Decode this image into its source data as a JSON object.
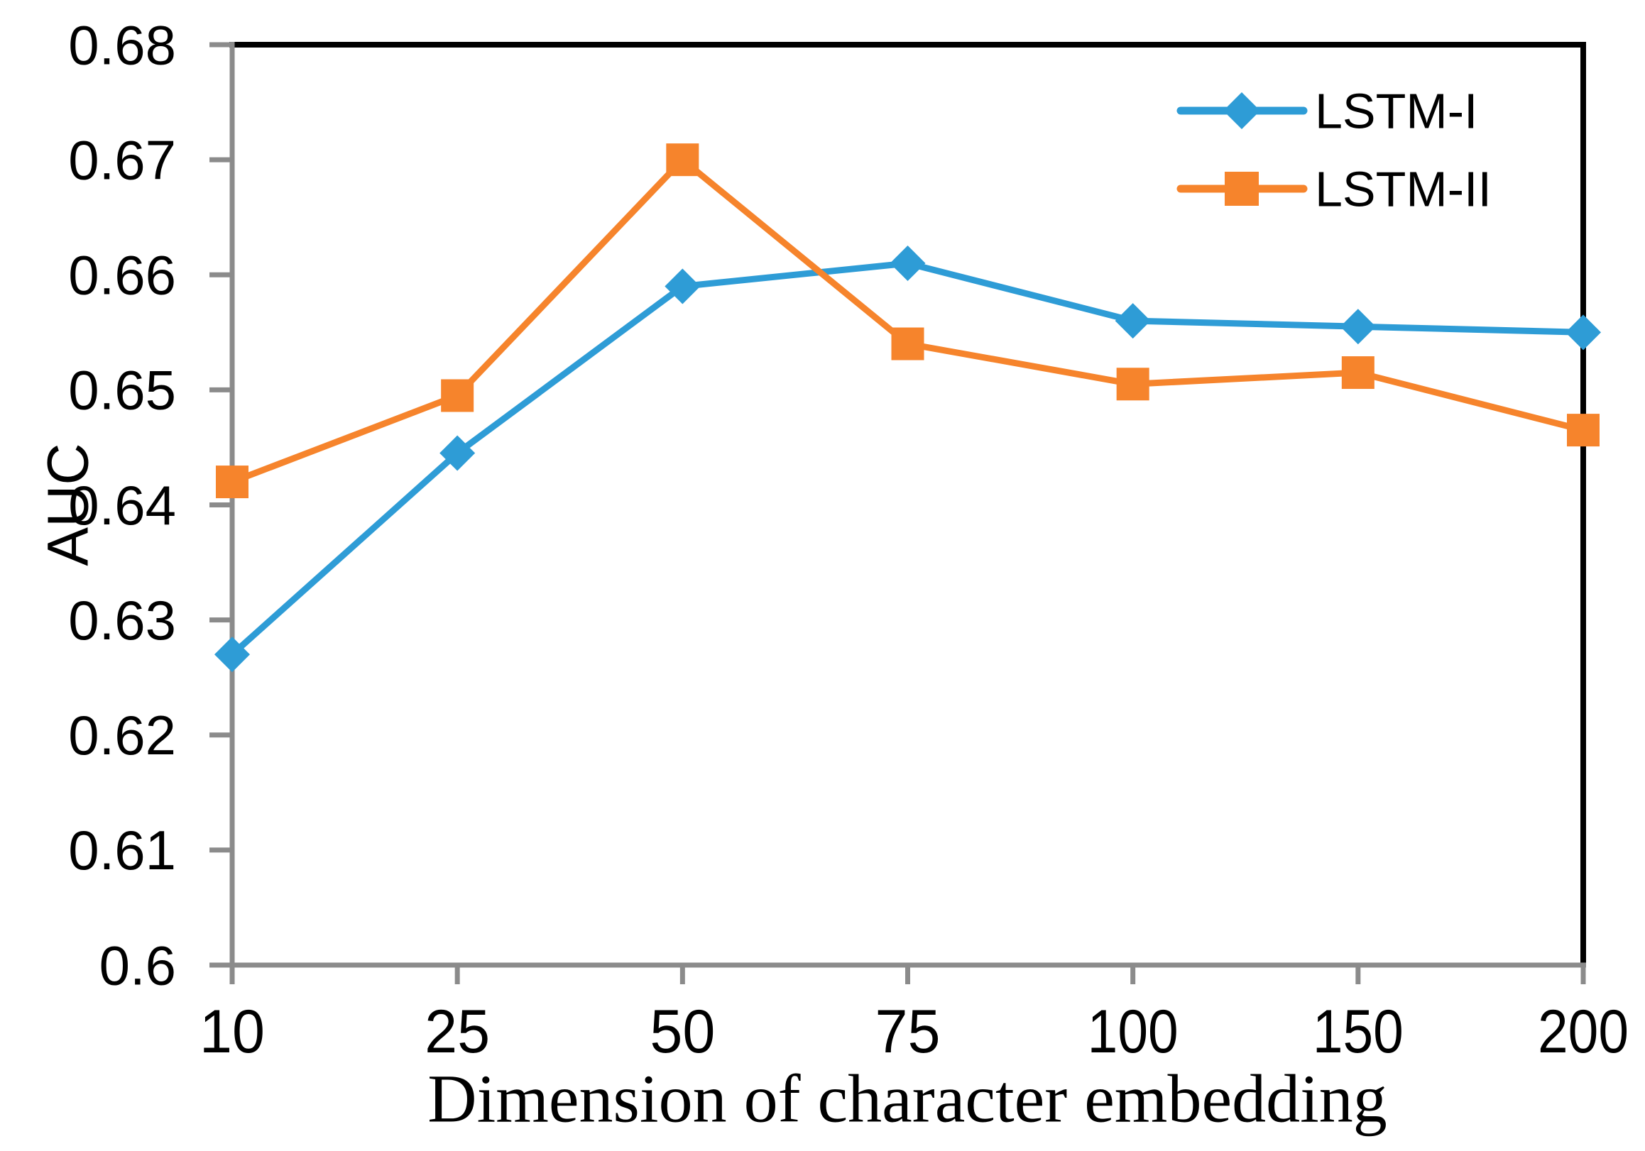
{
  "figure": {
    "ylabel": "AUC",
    "xlabel": "Dimension of character embedding"
  },
  "chart_data": {
    "type": "line",
    "title": "",
    "xlabel": "Dimension of character embedding",
    "ylabel": "AUC",
    "categories": [
      "10",
      "25",
      "50",
      "75",
      "100",
      "150",
      "200"
    ],
    "ylim": [
      0.6,
      0.68
    ],
    "y_ticks": [
      0.6,
      0.61,
      0.62,
      0.63,
      0.64,
      0.65,
      0.66,
      0.67,
      0.68
    ],
    "y_tick_labels": [
      "0.6",
      "0.61",
      "0.62",
      "0.63",
      "0.64",
      "0.65",
      "0.66",
      "0.67",
      "0.68"
    ],
    "grid": false,
    "legend_position": "top-right-inside",
    "series": [
      {
        "name": "LSTM-I",
        "marker": "diamond",
        "color": "#2E9CD6",
        "values": [
          0.627,
          0.6445,
          0.659,
          0.661,
          0.656,
          0.6555,
          0.655
        ]
      },
      {
        "name": "LSTM-II",
        "marker": "square",
        "color": "#F6842C",
        "values": [
          0.642,
          0.6495,
          0.67,
          0.654,
          0.6505,
          0.6515,
          0.6465
        ]
      }
    ]
  },
  "colors": {
    "background": "#FFFFFF",
    "axis_gray": "#8B8B8B",
    "frame_black": "#000000",
    "text_black": "#000000",
    "series_blue": "#2E9CD6",
    "series_orange": "#F6842C"
  }
}
